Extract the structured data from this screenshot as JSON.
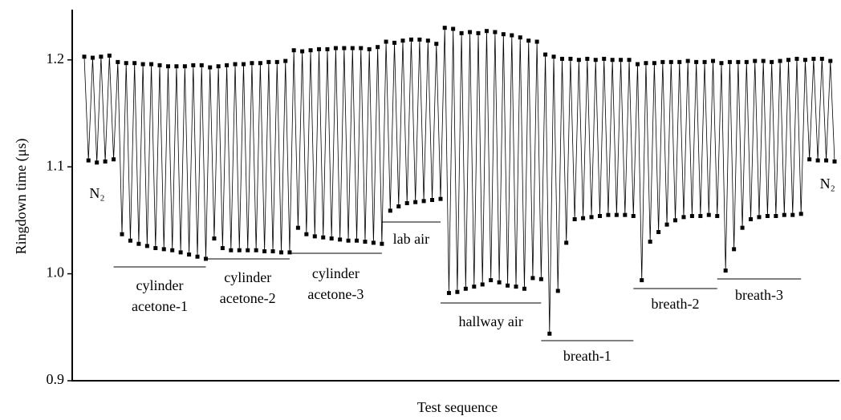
{
  "chart_data": {
    "type": "line",
    "y_label": "Ringdown time (μs)",
    "x_label": "Test sequence",
    "color": "#000000",
    "ylim": [
      0.9,
      1.247
    ],
    "yticks": [
      0.9,
      {
        "value": 1,
        "label": "1.0"
      },
      1.1,
      1.2
    ],
    "annotations": [
      "N₂",
      "cylinder\nacetone-1",
      "cylinder\nacetone-2",
      "cylinder\nacetone-3",
      "lab air",
      "hallway air",
      "breath-1",
      "breath-2",
      "breath-3",
      "N₂"
    ],
    "values": [
      1.203,
      1.106,
      1.202,
      1.104,
      1.203,
      1.105,
      1.204,
      1.107,
      1.198,
      1.037,
      1.197,
      1.031,
      1.197,
      1.028,
      1.196,
      1.026,
      1.196,
      1.024,
      1.195,
      1.023,
      1.194,
      1.022,
      1.194,
      1.02,
      1.194,
      1.018,
      1.195,
      1.016,
      1.195,
      1.014,
      1.193,
      1.033,
      1.194,
      1.024,
      1.195,
      1.022,
      1.196,
      1.022,
      1.196,
      1.022,
      1.197,
      1.022,
      1.197,
      1.021,
      1.198,
      1.021,
      1.198,
      1.02,
      1.199,
      1.02,
      1.209,
      1.043,
      1.208,
      1.037,
      1.209,
      1.035,
      1.21,
      1.034,
      1.21,
      1.033,
      1.211,
      1.032,
      1.211,
      1.031,
      1.211,
      1.031,
      1.211,
      1.03,
      1.21,
      1.029,
      1.212,
      1.028,
      1.217,
      1.059,
      1.216,
      1.063,
      1.218,
      1.066,
      1.219,
      1.067,
      1.219,
      1.068,
      1.218,
      1.069,
      1.215,
      1.07,
      1.23,
      0.982,
      1.229,
      0.983,
      1.225,
      0.986,
      1.226,
      0.988,
      1.225,
      0.99,
      1.227,
      0.994,
      1.226,
      0.992,
      1.224,
      0.989,
      1.223,
      0.988,
      1.221,
      0.986,
      1.218,
      0.996,
      1.217,
      0.995,
      1.205,
      0.944,
      1.203,
      0.984,
      1.201,
      1.029,
      1.201,
      1.051,
      1.2,
      1.052,
      1.201,
      1.053,
      1.2,
      1.054,
      1.201,
      1.055,
      1.2,
      1.055,
      1.2,
      1.055,
      1.2,
      1.054,
      1.196,
      0.994,
      1.197,
      1.03,
      1.197,
      1.039,
      1.198,
      1.046,
      1.198,
      1.05,
      1.198,
      1.053,
      1.199,
      1.054,
      1.198,
      1.054,
      1.198,
      1.055,
      1.199,
      1.054,
      1.197,
      1.003,
      1.198,
      1.023,
      1.198,
      1.043,
      1.198,
      1.051,
      1.199,
      1.053,
      1.199,
      1.054,
      1.198,
      1.054,
      1.199,
      1.055,
      1.2,
      1.055,
      1.201,
      1.056,
      1.2,
      1.107,
      1.201,
      1.106,
      1.201,
      1.106,
      1.199,
      1.105
    ]
  }
}
